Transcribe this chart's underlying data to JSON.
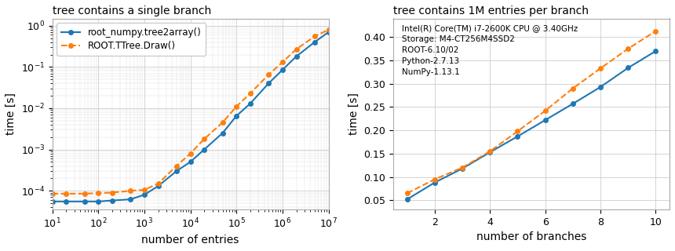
{
  "left": {
    "title": "tree contains a single branch",
    "xlabel": "number of entries",
    "ylabel": "time [s]",
    "blue_x": [
      10,
      20,
      50,
      100,
      200,
      500,
      1000,
      2000,
      5000,
      10000,
      20000,
      50000,
      100000,
      200000,
      500000,
      1000000,
      2000000,
      5000000,
      10000000
    ],
    "blue_y": [
      5.5e-05,
      5.5e-05,
      5.5e-05,
      5.5e-05,
      5.8e-05,
      6.2e-05,
      8e-05,
      0.00013,
      0.0003,
      0.0005,
      0.001,
      0.0025,
      0.0065,
      0.013,
      0.04,
      0.085,
      0.18,
      0.4,
      0.7
    ],
    "orange_x": [
      10,
      20,
      50,
      100,
      200,
      500,
      1000,
      2000,
      5000,
      10000,
      20000,
      50000,
      100000,
      200000,
      500000,
      1000000,
      2000000,
      5000000,
      10000000
    ],
    "orange_y": [
      8.5e-05,
      8.5e-05,
      8.5e-05,
      8.8e-05,
      9e-05,
      0.0001,
      0.000105,
      0.00015,
      0.0004,
      0.0008,
      0.0018,
      0.0045,
      0.011,
      0.023,
      0.065,
      0.13,
      0.27,
      0.55,
      0.8
    ],
    "blue_label": "root_numpy.tree2array()",
    "orange_label": "ROOT.TTree.Draw()",
    "xlim": [
      10,
      10000000.0
    ],
    "ylim": [
      3.5e-05,
      1.5
    ],
    "blue_color": "#1f77b4",
    "orange_color": "#ff7f0e"
  },
  "right": {
    "title": "tree contains 1M entries per branch",
    "xlabel": "number of branches",
    "ylabel": "time [s]",
    "annotation": "Intel(R) Core(TM) i7-2600K CPU @ 3.40GHz\nStorage: M4-CT256M4SSD2\nROOT-6.10/02\nPython-2.7.13\nNumPy-1.13.1",
    "blue_x": [
      1,
      2,
      3,
      4,
      5,
      6,
      7,
      8,
      9,
      10
    ],
    "blue_y": [
      0.052,
      0.088,
      0.118,
      0.153,
      0.187,
      0.222,
      0.257,
      0.293,
      0.334,
      0.37
    ],
    "orange_x": [
      1,
      2,
      3,
      4,
      5,
      6,
      7,
      8,
      9,
      10
    ],
    "orange_y": [
      0.065,
      0.095,
      0.12,
      0.155,
      0.198,
      0.242,
      0.29,
      0.333,
      0.375,
      0.413
    ],
    "xlim": [
      0.5,
      10.5
    ],
    "ylim": [
      0.03,
      0.44
    ],
    "yticks": [
      0.05,
      0.1,
      0.15,
      0.2,
      0.25,
      0.3,
      0.35,
      0.4
    ],
    "blue_color": "#1f77b4",
    "orange_color": "#ff7f0e"
  },
  "bg_color": "#ffffff",
  "figure_width": 8.6,
  "figure_height": 3.2,
  "dpi": 100
}
